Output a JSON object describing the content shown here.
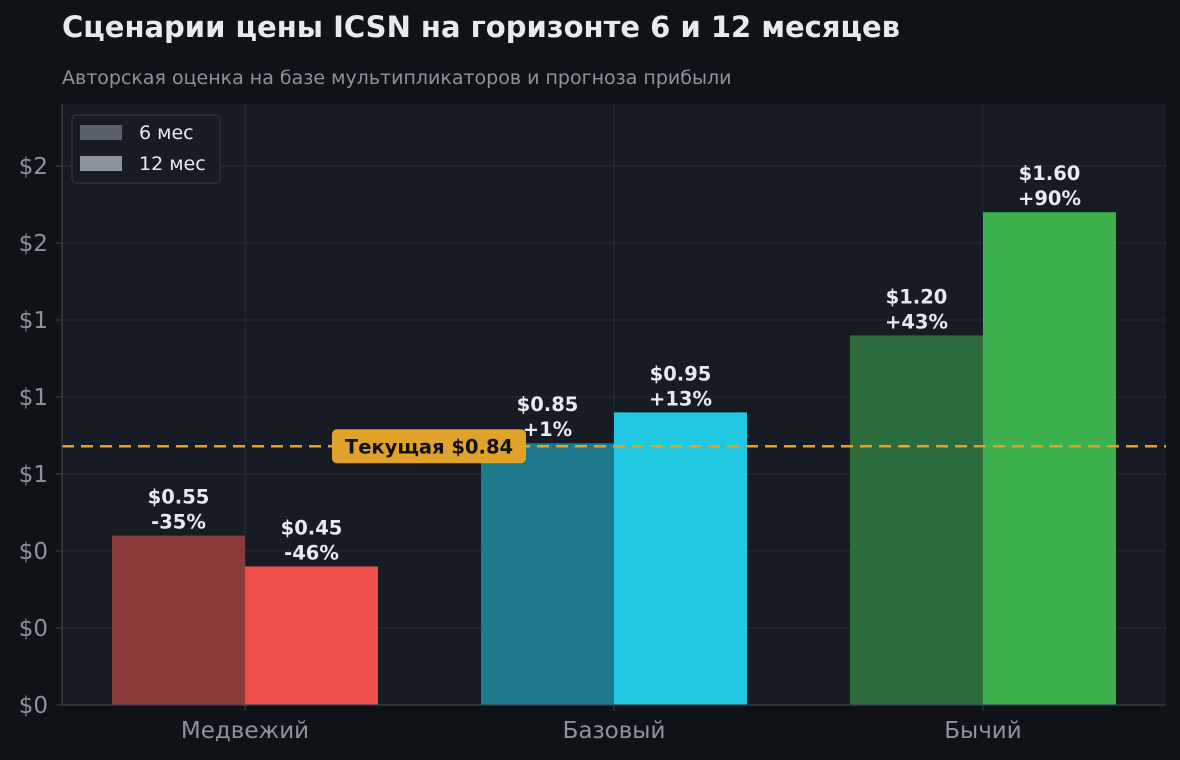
{
  "chart_data": {
    "type": "bar",
    "title": "Сценарии цены ICSN на горизонте 6 и 12 месяцев",
    "subtitle": "Авторская оценка на базе мультипликаторов и прогноза прибыли",
    "categories": [
      "Медвежий",
      "Базовый",
      "Бычий"
    ],
    "series": [
      {
        "name": "6 мес",
        "values": [
          0.55,
          0.85,
          1.2
        ],
        "labels": [
          "$0.55",
          "$0.85",
          "$1.20"
        ],
        "changes": [
          "-35%",
          "+1%",
          "+43%"
        ],
        "colors": [
          "#8b3a3a",
          "#1d7a8c",
          "#2b6b3c"
        ]
      },
      {
        "name": "12 мес",
        "values": [
          0.45,
          0.95,
          1.6
        ],
        "labels": [
          "$0.45",
          "$0.95",
          "$1.60"
        ],
        "changes": [
          "-46%",
          "+13%",
          "+90%"
        ],
        "colors": [
          "#ec4f4a",
          "#22c7e2",
          "#3db14d"
        ]
      }
    ],
    "legend_colors": [
      "#5a606b",
      "#8a939f"
    ],
    "reference_line": {
      "value": 0.84,
      "label": "Текущая $0.84",
      "color": "#e0a22a"
    },
    "ylim": [
      0,
      1.8
    ],
    "yticks": [
      0,
      0.25,
      0.5,
      0.75,
      1.0,
      1.25,
      1.5,
      1.75
    ],
    "ytick_labels": [
      "$0",
      "$0",
      "$0",
      "$1",
      "$1",
      "$1",
      "$2",
      "$2"
    ],
    "grid": true,
    "legend_position": "top-left",
    "xlabel": "",
    "ylabel": ""
  }
}
